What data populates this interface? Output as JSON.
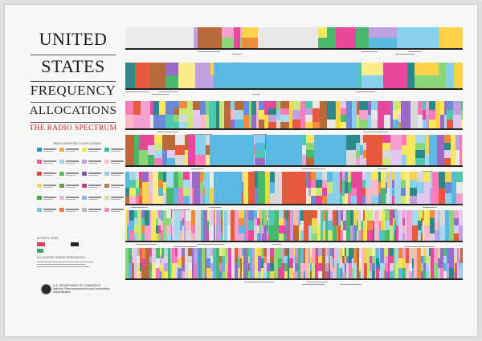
{
  "poster": {
    "title_line1": "UNITED",
    "title_line2": "STATES",
    "title_line3": "FREQUENCY",
    "title_line4": "ALLOCATIONS",
    "subtitle": "THE RADIO SPECTRUM",
    "legend_title": "RADIO SERVICES COLOR LEGEND",
    "activity_title": "ACTIVITY CODE",
    "designation_title": "ALLOCATION USAGE DESIGNATION",
    "agency_text": "U.S. DEPARTMENT OF COMMERCE",
    "agency_subtext": "National Telecommunications and Information Administration"
  },
  "legend_colors": [
    "#2f8fc9",
    "#f2a93b",
    "#f4e64a",
    "#3bb8a6",
    "#e85aa8",
    "#9fd6ea",
    "#c8a0d8",
    "#f6c6d8",
    "#d84e3c",
    "#5fb85a",
    "#7a5aa8",
    "#a0c8e8",
    "#f8d06a",
    "#6a9a48",
    "#c83c8c",
    "#b08050",
    "#4aa84a",
    "#e8b8e0",
    "#8ab8e0",
    "#d8d8a0",
    "#7cc8d0",
    "#e8783c",
    "#b8b8b8",
    "#f08ab8"
  ],
  "activity_colors": [
    "#e03c5c",
    "#222222",
    "#3aa86a"
  ],
  "palette": [
    "#e8489c",
    "#f4a0d0",
    "#f6e85a",
    "#fbd24a",
    "#5bb8e0",
    "#8ad0ee",
    "#c0a0e0",
    "#9a6ac8",
    "#e85a3c",
    "#b86a3a",
    "#4ab86a",
    "#8cd67a",
    "#2a8a8a",
    "#f08a3c",
    "#e8e8e8",
    "#d8d8d8",
    "#50c8b0",
    "#f8b8c8",
    "#e0c8f0",
    "#a8d8f0",
    "#fcec8c",
    "#6a8ad8",
    "#ff7ab8",
    "#c8e878"
  ]
}
